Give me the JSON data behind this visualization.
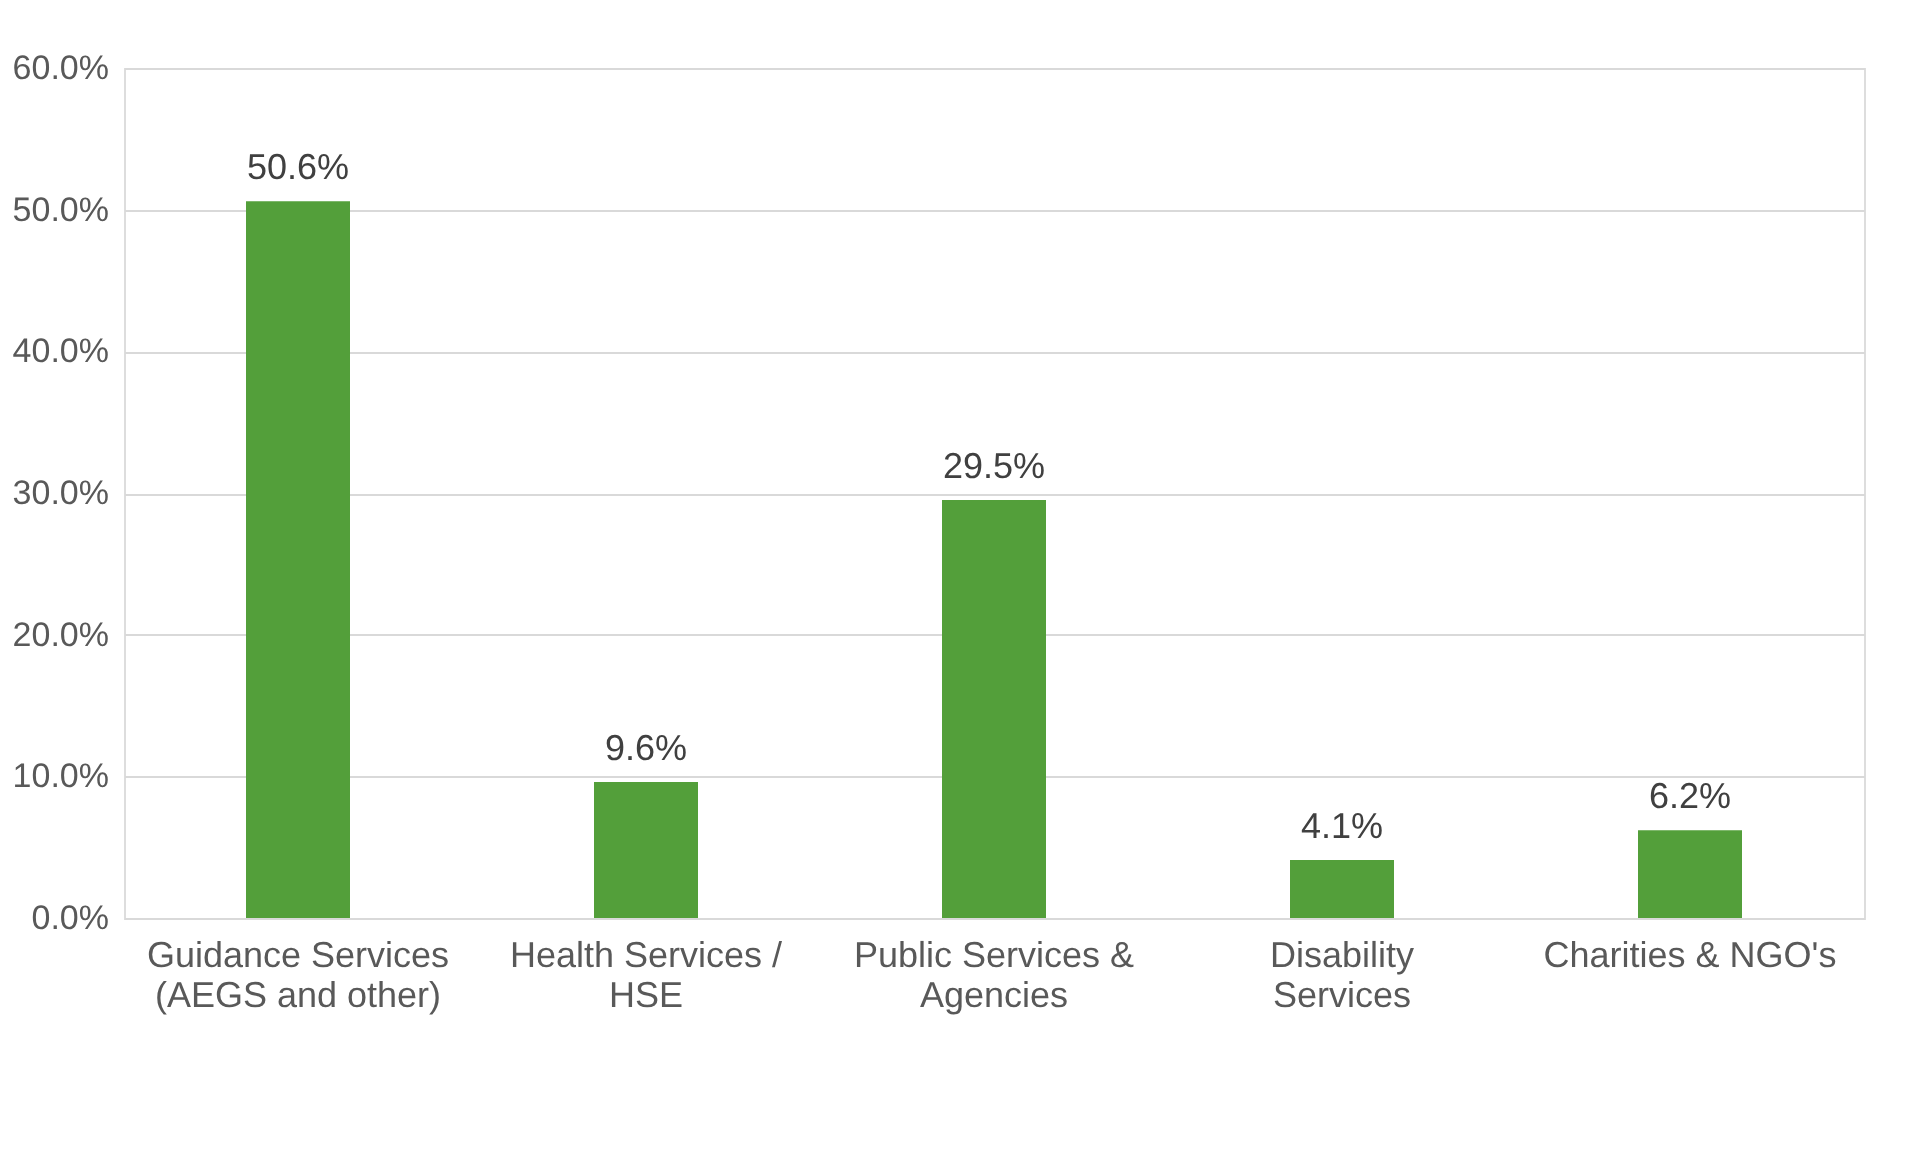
{
  "chart_data": {
    "type": "bar",
    "categories": [
      "Guidance Services (AEGS and other)",
      "Health Services / HSE",
      "Public Services & Agencies",
      "Disability Services",
      "Charities & NGO's"
    ],
    "values": [
      50.6,
      9.6,
      29.5,
      4.1,
      6.2
    ],
    "value_labels": [
      "50.6%",
      "9.6%",
      "29.5%",
      "4.1%",
      "6.2%"
    ],
    "color": "#539f3a",
    "ylim": [
      0,
      60
    ],
    "yticks": [
      {
        "value": 0,
        "label": "0.0%"
      },
      {
        "value": 10,
        "label": "10.0%"
      },
      {
        "value": 20,
        "label": "20.0%"
      },
      {
        "value": 30,
        "label": "30.0%"
      },
      {
        "value": 40,
        "label": "40.0%"
      },
      {
        "value": 50,
        "label": "50.0%"
      },
      {
        "value": 60,
        "label": "60.0%"
      }
    ],
    "grid": "y"
  }
}
